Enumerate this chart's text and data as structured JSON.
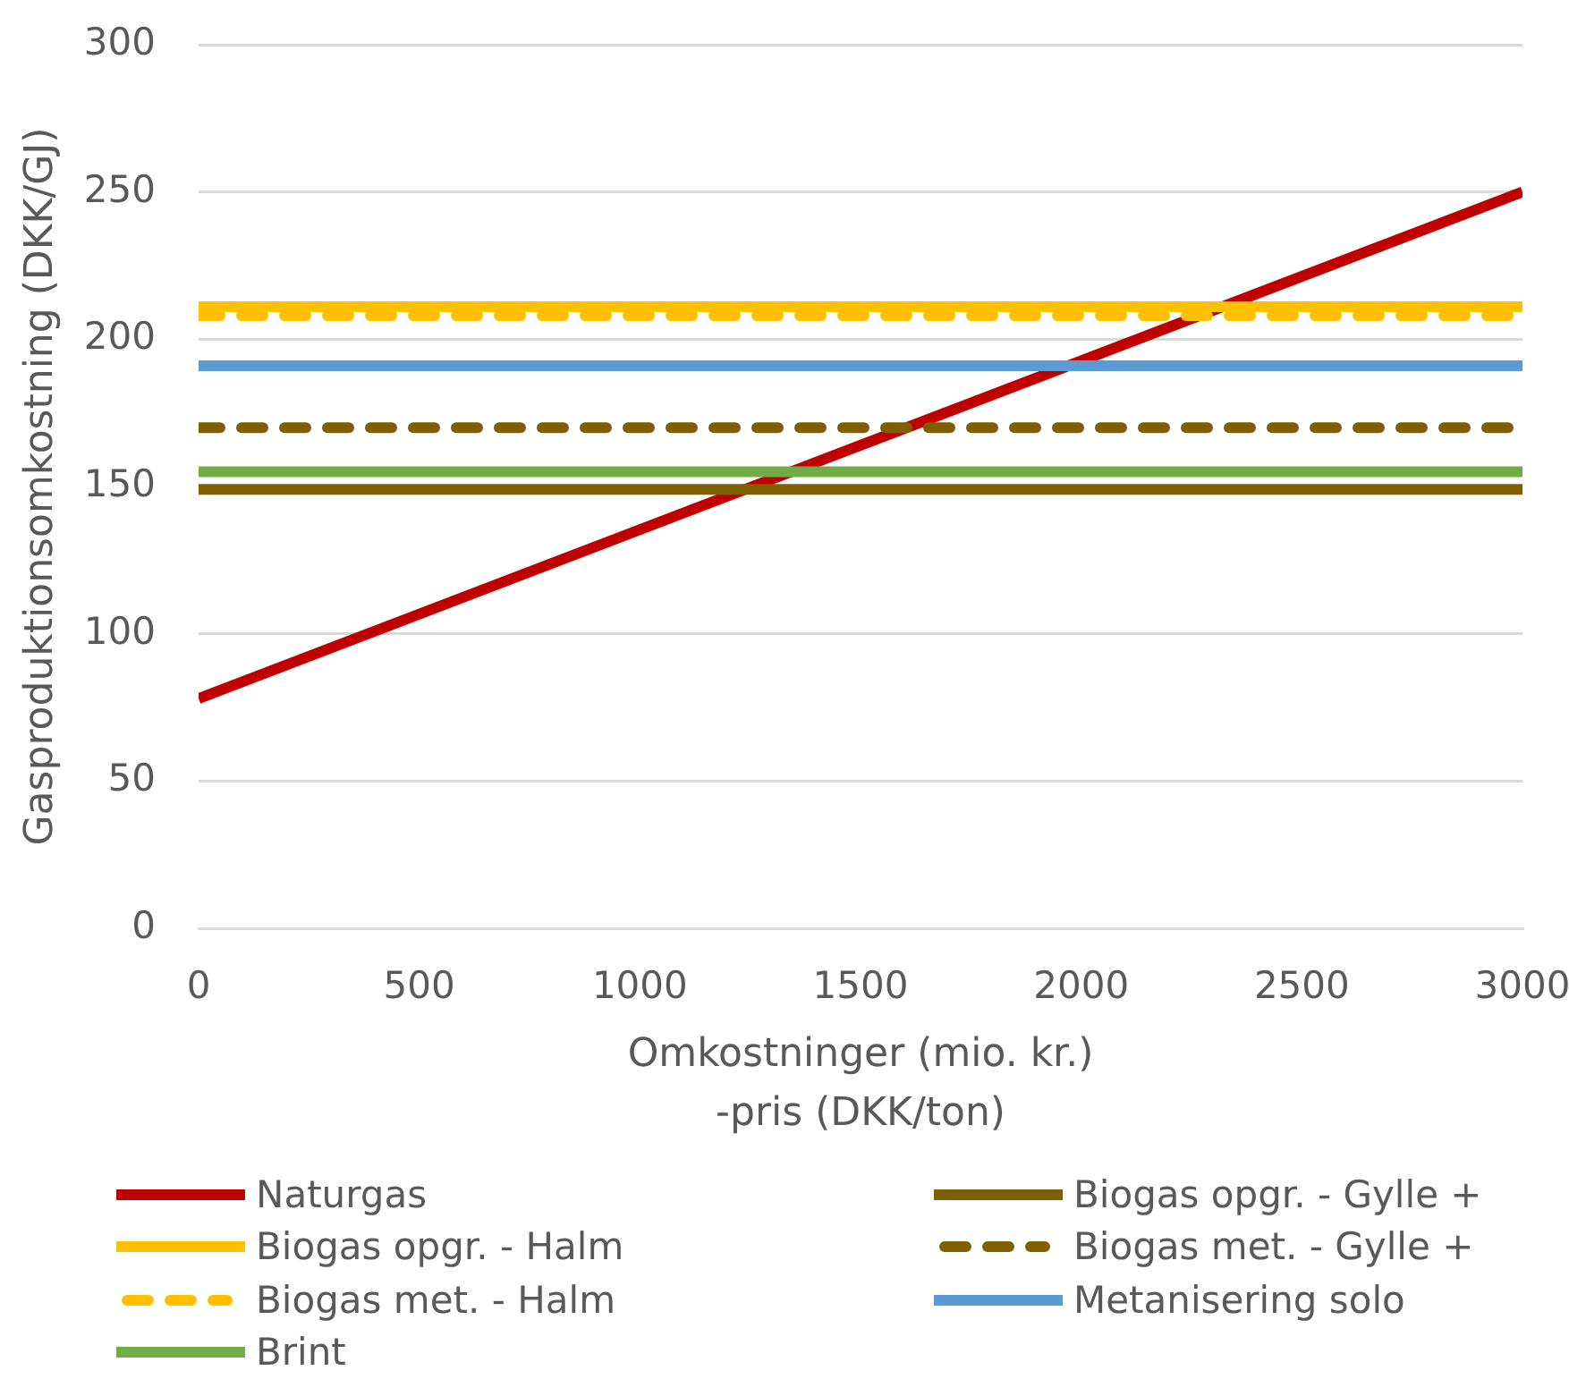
{
  "chart_data": {
    "type": "line",
    "xlabel": "Omkostninger (mio. kr.)\n-pris (DKK/ton)",
    "ylabel": "Gasproduktionsomkostning (DKK/GJ)",
    "x": [
      0,
      3000
    ],
    "series": [
      {
        "name": "Naturgas",
        "color": "#c00000",
        "values": [
          78,
          250
        ]
      },
      {
        "name": "Biogas opgr. - Gylle +",
        "color": "#7f6000",
        "values": [
          149,
          149
        ]
      },
      {
        "name": "Biogas opgr. - Halm",
        "color": "#ffc000",
        "values": [
          211,
          211
        ]
      },
      {
        "name": "Biogas met. - Gylle +",
        "color": "#7f6000",
        "values": [
          170,
          170
        ],
        "line_style": "dashed"
      },
      {
        "name": "Biogas met. - Halm",
        "color": "#ffc000",
        "values": [
          208,
          208
        ],
        "line_style": "dashed"
      },
      {
        "name": "Metanisering solo",
        "color": "#5b9bd5",
        "values": [
          191,
          191
        ]
      },
      {
        "name": "Brint",
        "color": "#70ad47",
        "values": [
          155,
          155
        ]
      }
    ],
    "xlim": [
      0,
      3000
    ],
    "xticks": [
      0,
      500,
      1000,
      1500,
      2000,
      2500,
      3000
    ],
    "ylim": [
      0,
      300
    ],
    "yticks": [
      0,
      50,
      100,
      150,
      200,
      250,
      300
    ],
    "grid": "y",
    "legend": "bottom",
    "marker": "none",
    "line_style": "solid"
  }
}
